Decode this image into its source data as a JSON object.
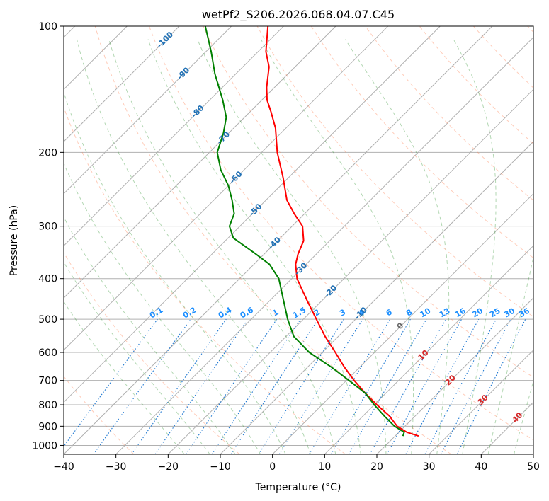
{
  "chart_data": {
    "type": "line",
    "title": "wetPf2_S206.2026.068.04.07.C45",
    "xlabel": "Temperature (°C)",
    "ylabel": "Pressure (hPa)",
    "xlim": [
      -40,
      50
    ],
    "ylim": [
      1050,
      100
    ],
    "yscale": "log",
    "grid": true,
    "x_ticks": [
      "−40",
      "−30",
      "−20",
      "−10",
      "0",
      "10",
      "20",
      "30",
      "40",
      "50"
    ],
    "x_tick_values": [
      -40,
      -30,
      -20,
      -10,
      0,
      10,
      20,
      30,
      40,
      50
    ],
    "y_ticks": [
      "100",
      "200",
      "300",
      "400",
      "500",
      "600",
      "700",
      "800",
      "900",
      "1000"
    ],
    "y_tick_values": [
      100,
      200,
      300,
      400,
      500,
      600,
      700,
      800,
      900,
      1000
    ],
    "skew": 45,
    "dry_adiabats_theta_c": [
      -30,
      -10,
      10,
      30,
      50,
      70,
      90,
      110,
      130,
      150,
      170,
      190,
      210
    ],
    "moist_adiabats_c": [
      -20,
      -15,
      -10,
      -5,
      0,
      5,
      10,
      15,
      20,
      25,
      30,
      35,
      40,
      45
    ],
    "saturation_mixing_ratios": [
      "0.1",
      "0.2",
      "0.4",
      "0.6",
      "1",
      "1.5",
      "2",
      "3",
      "4",
      "6",
      "8",
      "10",
      "13",
      "16",
      "20",
      "25",
      "30",
      "36"
    ],
    "mixing_ratio_values": [
      0.1,
      0.2,
      0.4,
      0.6,
      1,
      1.5,
      2,
      3,
      4,
      6,
      8,
      10,
      13,
      16,
      20,
      25,
      30,
      36
    ],
    "isotherm_labels_cold": [
      "-100",
      "-90",
      "-80",
      "-70",
      "-60",
      "-50",
      "-40",
      "-30",
      "-20",
      "-10"
    ],
    "isotherm_values_cold": [
      -100,
      -90,
      -80,
      -70,
      -60,
      -50,
      -40,
      -30,
      -20,
      -10
    ],
    "isotherm_label_pressures": [
      108,
      130,
      160,
      185,
      230,
      275,
      330,
      380,
      430,
      485
    ],
    "isotherm_labels_warm": [
      "0",
      "10",
      "20",
      "30",
      "40"
    ],
    "isotherm_values_warm": [
      0,
      10,
      20,
      30,
      40
    ],
    "isotherm_warm_label_pressures": [
      520,
      610,
      700,
      780,
      860
    ],
    "series": [
      {
        "name": "Temperature",
        "color": "#ff0000",
        "points": [
          {
            "p": 950,
            "t": 24.5
          },
          {
            "p": 930,
            "t": 21.5
          },
          {
            "p": 900,
            "t": 18.5
          },
          {
            "p": 850,
            "t": 15.0
          },
          {
            "p": 800,
            "t": 10.5
          },
          {
            "p": 750,
            "t": 6.0
          },
          {
            "p": 700,
            "t": 1.5
          },
          {
            "p": 650,
            "t": -3.0
          },
          {
            "p": 600,
            "t": -7.5
          },
          {
            "p": 550,
            "t": -12.5
          },
          {
            "p": 500,
            "t": -17.5
          },
          {
            "p": 450,
            "t": -23.0
          },
          {
            "p": 400,
            "t": -29.0
          },
          {
            "p": 370,
            "t": -32.0
          },
          {
            "p": 350,
            "t": -33.5
          },
          {
            "p": 325,
            "t": -35.0
          },
          {
            "p": 300,
            "t": -38.0
          },
          {
            "p": 280,
            "t": -42.0
          },
          {
            "p": 260,
            "t": -46.0
          },
          {
            "p": 230,
            "t": -51.0
          },
          {
            "p": 200,
            "t": -57.0
          },
          {
            "p": 175,
            "t": -62.0
          },
          {
            "p": 160,
            "t": -66.0
          },
          {
            "p": 150,
            "t": -69.0
          },
          {
            "p": 140,
            "t": -71.5
          },
          {
            "p": 125,
            "t": -75.0
          },
          {
            "p": 115,
            "t": -78.5
          },
          {
            "p": 100,
            "t": -83.0
          }
        ]
      },
      {
        "name": "Dewpoint",
        "color": "#008000",
        "points": [
          {
            "p": 950,
            "t": 21.5
          },
          {
            "p": 930,
            "t": 21.0
          },
          {
            "p": 900,
            "t": 18.0
          },
          {
            "p": 850,
            "t": 14.0
          },
          {
            "p": 800,
            "t": 10.0
          },
          {
            "p": 750,
            "t": 6.0
          },
          {
            "p": 700,
            "t": 0.5
          },
          {
            "p": 650,
            "t": -5.5
          },
          {
            "p": 600,
            "t": -12.5
          },
          {
            "p": 550,
            "t": -18.5
          },
          {
            "p": 500,
            "t": -23.0
          },
          {
            "p": 450,
            "t": -27.5
          },
          {
            "p": 400,
            "t": -32.5
          },
          {
            "p": 370,
            "t": -37.0
          },
          {
            "p": 350,
            "t": -41.5
          },
          {
            "p": 320,
            "t": -49.0
          },
          {
            "p": 300,
            "t": -52.0
          },
          {
            "p": 280,
            "t": -53.5
          },
          {
            "p": 260,
            "t": -56.5
          },
          {
            "p": 240,
            "t": -60.0
          },
          {
            "p": 220,
            "t": -64.5
          },
          {
            "p": 200,
            "t": -68.5
          },
          {
            "p": 180,
            "t": -71.0
          },
          {
            "p": 165,
            "t": -73.5
          },
          {
            "p": 150,
            "t": -77.5
          },
          {
            "p": 130,
            "t": -84.0
          },
          {
            "p": 115,
            "t": -89.0
          },
          {
            "p": 100,
            "t": -95.0
          }
        ]
      }
    ]
  }
}
